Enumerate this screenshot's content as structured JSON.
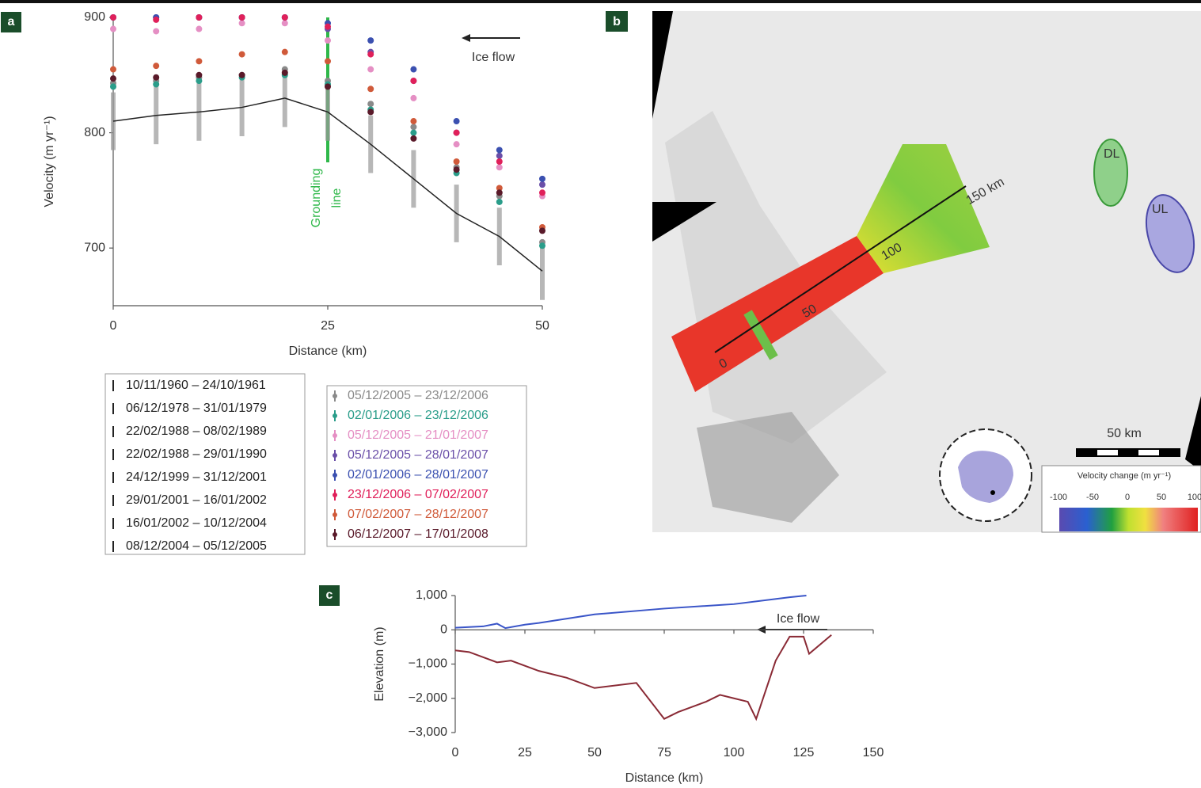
{
  "chart_data": [
    {
      "type": "scatter",
      "label": "a",
      "y_label": "Velocity (m yr⁻¹)",
      "x_label": "Distance (km)",
      "xlim": [
        0,
        50
      ],
      "xticks": [
        0,
        25,
        50
      ],
      "ylim": [
        650,
        900
      ],
      "yticks": [
        700,
        800,
        900
      ],
      "x": [
        0,
        5,
        10,
        15,
        20,
        25,
        30,
        35,
        40,
        45,
        50
      ],
      "annotation": "Ice flow",
      "grounding_line": {
        "x": 25,
        "label": [
          "Grounding",
          "line"
        ],
        "color": "#2fb84a"
      },
      "series": [
        {
          "name": "10/11/1960 – 24/10/1961",
          "color": "#222222",
          "mode": "line",
          "legend": "left",
          "values": [
            810,
            815,
            818,
            822,
            830,
            818,
            790,
            760,
            730,
            710,
            680
          ],
          "errors": [
            25,
            25,
            25,
            25,
            25,
            25,
            25,
            25,
            25,
            25,
            25
          ]
        },
        {
          "name": "05/12/2005 – 23/12/2006",
          "color": "#8a8a8a",
          "mode": "points",
          "legend": "right",
          "values": [
            843,
            845,
            848,
            850,
            855,
            845,
            825,
            805,
            770,
            745,
            705
          ]
        },
        {
          "name": "02/01/2006 – 23/12/2006",
          "color": "#2a9d8a",
          "mode": "points",
          "legend": "right",
          "values": [
            840,
            842,
            845,
            848,
            850,
            842,
            820,
            800,
            765,
            740,
            702
          ]
        },
        {
          "name": "05/12/2005 – 21/01/2007",
          "color": "#e58fc4",
          "mode": "points",
          "legend": "right",
          "values": [
            890,
            888,
            890,
            895,
            895,
            880,
            855,
            830,
            790,
            770,
            745
          ]
        },
        {
          "name": "05/12/2005 – 28/01/2007",
          "color": "#6a4fa8",
          "mode": "points",
          "legend": "right",
          "values": [
            900,
            900,
            900,
            900,
            900,
            890,
            870,
            845,
            800,
            780,
            755
          ]
        },
        {
          "name": "02/01/2006 – 28/01/2007",
          "color": "#3b50b0",
          "mode": "points",
          "legend": "right",
          "values": [
            900,
            900,
            900,
            900,
            900,
            895,
            880,
            855,
            810,
            785,
            760
          ]
        },
        {
          "name": "23/12/2006 – 07/02/2007",
          "color": "#e0205a",
          "mode": "points",
          "legend": "right",
          "values": [
            900,
            898,
            900,
            900,
            900,
            892,
            868,
            845,
            800,
            775,
            748
          ]
        },
        {
          "name": "07/02/2007 – 28/12/2007",
          "color": "#d05a3a",
          "mode": "points",
          "legend": "right",
          "values": [
            855,
            858,
            862,
            868,
            870,
            862,
            838,
            810,
            775,
            752,
            718
          ]
        },
        {
          "name": "06/12/2007 – 17/01/2008",
          "color": "#5a1a2a",
          "mode": "points",
          "legend": "right",
          "values": [
            847,
            848,
            850,
            850,
            852,
            840,
            818,
            795,
            768,
            748,
            715
          ]
        }
      ],
      "historic_entries": [
        "06/12/1978 – 31/01/1979",
        "22/02/1988 – 08/02/1989",
        "22/02/1988 – 29/01/1990",
        "24/12/1999 – 31/12/2001",
        "29/01/2001 – 16/01/2002",
        "16/01/2002 – 10/12/2004",
        "08/12/2004 – 05/12/2005"
      ]
    },
    {
      "type": "line",
      "label": "c",
      "y_label": "Elevation (m)",
      "x_label": "Distance (km)",
      "xlim": [
        0,
        150
      ],
      "xticks": [
        0,
        25,
        50,
        75,
        100,
        125,
        150
      ],
      "ylim": [
        -3000,
        1000
      ],
      "yticks": [
        {
          "value": 1000,
          "label": "1,000"
        },
        0,
        {
          "value": -1000,
          "label": "−1,000"
        },
        {
          "value": -2000,
          "label": "−2,000"
        },
        {
          "value": -3000,
          "label": "−3,000"
        }
      ],
      "annotation": "Ice flow",
      "series": [
        {
          "color": "#3a55c8",
          "x": [
            0,
            10,
            15,
            18,
            25,
            30,
            50,
            75,
            100,
            120,
            126
          ],
          "values": [
            60,
            100,
            180,
            50,
            150,
            200,
            450,
            620,
            750,
            950,
            1000
          ]
        },
        {
          "color": "#8a2a35",
          "x": [
            0,
            5,
            15,
            20,
            30,
            40,
            50,
            65,
            75,
            80,
            90,
            95,
            100,
            105,
            108,
            115,
            120,
            125,
            127,
            135
          ],
          "values": [
            -600,
            -650,
            -950,
            -900,
            -1200,
            -1400,
            -1700,
            -1550,
            -2600,
            -2400,
            -2100,
            -1900,
            -2000,
            -2100,
            -2600,
            -900,
            -200,
            -200,
            -700,
            -150
          ]
        }
      ]
    }
  ],
  "map": {
    "label": "b",
    "lakes": [
      "DL",
      "UL"
    ],
    "profile_labels": [
      "0",
      "50",
      "100",
      "150 km"
    ],
    "scale_bar": "50 km",
    "colorbar": {
      "title": "Velocity change (m yr⁻¹)",
      "ticks": [
        -100,
        -50,
        0,
        50,
        100
      ]
    }
  }
}
